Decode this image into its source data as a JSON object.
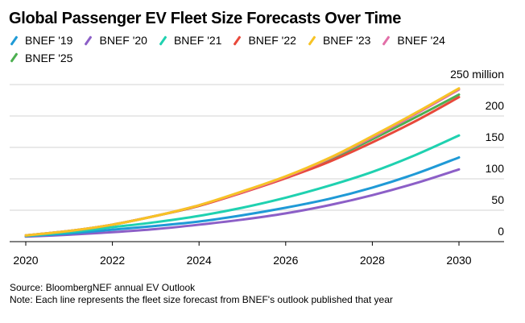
{
  "chart_data": {
    "type": "line",
    "title": "Global Passenger EV Fleet Size Forecasts Over Time",
    "x": [
      2020,
      2021,
      2022,
      2023,
      2024,
      2025,
      2026,
      2027,
      2028,
      2029,
      2030
    ],
    "x_ticks": [
      "2020",
      "2022",
      "2024",
      "2026",
      "2028",
      "2030"
    ],
    "y_ticks": [
      "0",
      "50",
      "100",
      "150",
      "200",
      "250 million"
    ],
    "y_tick_values": [
      0,
      50,
      100,
      150,
      200,
      250
    ],
    "ylim": [
      0,
      250
    ],
    "xlim": [
      2020,
      2031
    ],
    "grid": true,
    "legend_position": "top-left",
    "series": [
      {
        "name": "BNEF '19",
        "color": "#1f9ad6",
        "values": [
          9,
          13,
          19,
          25,
          32,
          42,
          54,
          68,
          86,
          108,
          134
        ]
      },
      {
        "name": "BNEF '20",
        "color": "#8c5fc7",
        "values": [
          8,
          11,
          15,
          20,
          27,
          35,
          45,
          58,
          74,
          93,
          115
        ]
      },
      {
        "name": "BNEF '21",
        "color": "#1fd1b0",
        "values": [
          9,
          15,
          23,
          31,
          41,
          54,
          70,
          89,
          111,
          138,
          169
        ]
      },
      {
        "name": "BNEF '22",
        "color": "#e8493b",
        "values": [
          10,
          17,
          27,
          41,
          57,
          78,
          101,
          127,
          158,
          192,
          230
        ]
      },
      {
        "name": "BNEF '23",
        "color": "#f7c325",
        "values": [
          10,
          17,
          27,
          41,
          58,
          80,
          104,
          133,
          168,
          205,
          244
        ]
      },
      {
        "name": "BNEF '24",
        "color": "#e26fa8",
        "values": [
          10,
          17,
          27,
          41,
          58,
          79,
          103,
          132,
          166,
          203,
          242
        ]
      },
      {
        "name": "BNEF '25",
        "color": "#4caf50",
        "values": [
          10,
          17,
          27,
          41,
          57,
          79,
          102,
          130,
          163,
          198,
          234
        ]
      }
    ]
  },
  "footer": {
    "source": "Source: BloombergNEF annual EV Outlook",
    "note": "Note: Each line represents the fleet size forecast from BNEF's outlook published that year"
  }
}
